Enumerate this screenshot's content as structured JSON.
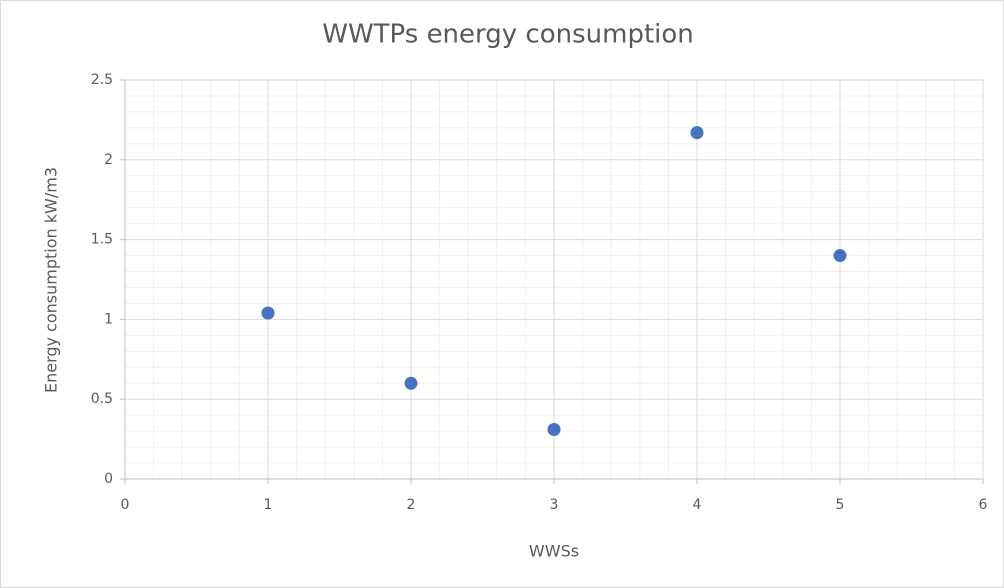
{
  "chart_data": {
    "type": "scatter",
    "title": "WWTPs energy consumption",
    "x_label": "WWSs",
    "y_label": "Energy consumption kW/m3",
    "series": [
      {
        "color": "#4472c4",
        "x": [
          1,
          2,
          3,
          4,
          5
        ],
        "values": [
          1.04,
          0.6,
          0.31,
          2.17,
          1.4
        ]
      }
    ],
    "xlim": [
      0,
      6
    ],
    "xticks": [
      0,
      1,
      2,
      3,
      4,
      5,
      6
    ],
    "ylim": [
      0,
      2.5
    ],
    "yticks": [
      0,
      0.5,
      1,
      1.5,
      2,
      2.5
    ],
    "grid": true,
    "minor_grid": true
  }
}
